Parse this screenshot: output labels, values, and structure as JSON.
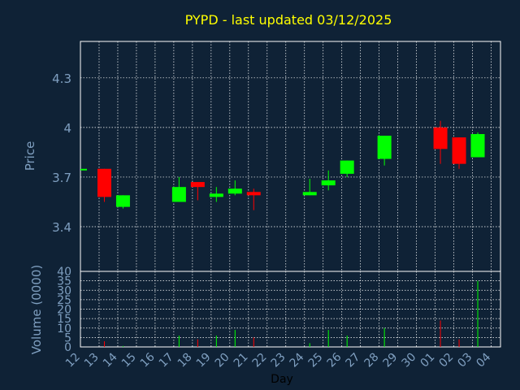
{
  "colors": {
    "background": "#0f2236",
    "frame": "#ffffff",
    "grid": "#ffffff",
    "title": "#ffff00",
    "axis_text": "#7f9fc0",
    "up": "#00ff00",
    "down": "#ff0000",
    "flat": "#00ff00"
  },
  "chart_data": {
    "type": "candlestick",
    "title": "PYPD - last updated 03/12/2025",
    "price_panel": {
      "ylabel": "Price",
      "ylim": [
        3.13,
        4.52
      ],
      "yticks": [
        3.4,
        3.7,
        4,
        4.3
      ],
      "ytick_labels": [
        "3.4",
        "3.7",
        "4",
        "4.3"
      ]
    },
    "volume_panel": {
      "ylabel": "Volume (0000)",
      "ylim": [
        0,
        40
      ],
      "yticks": [
        0,
        5,
        10,
        15,
        20,
        25,
        30,
        35,
        40
      ],
      "ytick_labels": [
        "0",
        "5",
        "10",
        "15",
        "20",
        "25",
        "30",
        "35",
        "40"
      ]
    },
    "xlabel": "Day",
    "x_tick_labels": [
      "12",
      "13",
      "14",
      "15",
      "16",
      "17",
      "18",
      "19",
      "20",
      "21",
      "22",
      "23",
      "24",
      "25",
      "26",
      "27",
      "28",
      "29",
      "30",
      "01",
      "02",
      "03",
      "04"
    ],
    "grid": true,
    "candles": [
      {
        "slot": 0,
        "open": 3.75,
        "high": 3.75,
        "low": 3.75,
        "close": 3.75,
        "volume": 0
      },
      {
        "slot": 1,
        "open": 3.75,
        "high": 3.75,
        "low": 3.55,
        "close": 3.58,
        "volume": 3
      },
      {
        "slot": 2,
        "open": 3.52,
        "high": 3.59,
        "low": 3.51,
        "close": 3.59,
        "volume": 0.5
      },
      {
        "slot": 5,
        "open": 3.55,
        "high": 3.7,
        "low": 3.55,
        "close": 3.64,
        "volume": 6
      },
      {
        "slot": 6,
        "open": 3.67,
        "high": 3.67,
        "low": 3.56,
        "close": 3.64,
        "volume": 4
      },
      {
        "slot": 7,
        "open": 3.58,
        "high": 3.64,
        "low": 3.55,
        "close": 3.6,
        "volume": 6
      },
      {
        "slot": 8,
        "open": 3.6,
        "high": 3.68,
        "low": 3.59,
        "close": 3.63,
        "volume": 9
      },
      {
        "slot": 9,
        "open": 3.61,
        "high": 3.63,
        "low": 3.5,
        "close": 3.59,
        "volume": 5
      },
      {
        "slot": 12,
        "open": 3.59,
        "high": 3.69,
        "low": 3.59,
        "close": 3.61,
        "volume": 2
      },
      {
        "slot": 13,
        "open": 3.65,
        "high": 3.74,
        "low": 3.62,
        "close": 3.68,
        "volume": 9
      },
      {
        "slot": 14,
        "open": 3.72,
        "high": 3.8,
        "low": 3.7,
        "close": 3.8,
        "volume": 6
      },
      {
        "slot": 16,
        "open": 3.81,
        "high": 3.95,
        "low": 3.77,
        "close": 3.95,
        "volume": 10
      },
      {
        "slot": 19,
        "open": 4.0,
        "high": 4.04,
        "low": 3.78,
        "close": 3.87,
        "volume": 14
      },
      {
        "slot": 20,
        "open": 3.94,
        "high": 3.94,
        "low": 3.75,
        "close": 3.78,
        "volume": 4
      },
      {
        "slot": 21,
        "open": 3.82,
        "high": 3.97,
        "low": 3.82,
        "close": 3.96,
        "volume": 35
      }
    ]
  }
}
